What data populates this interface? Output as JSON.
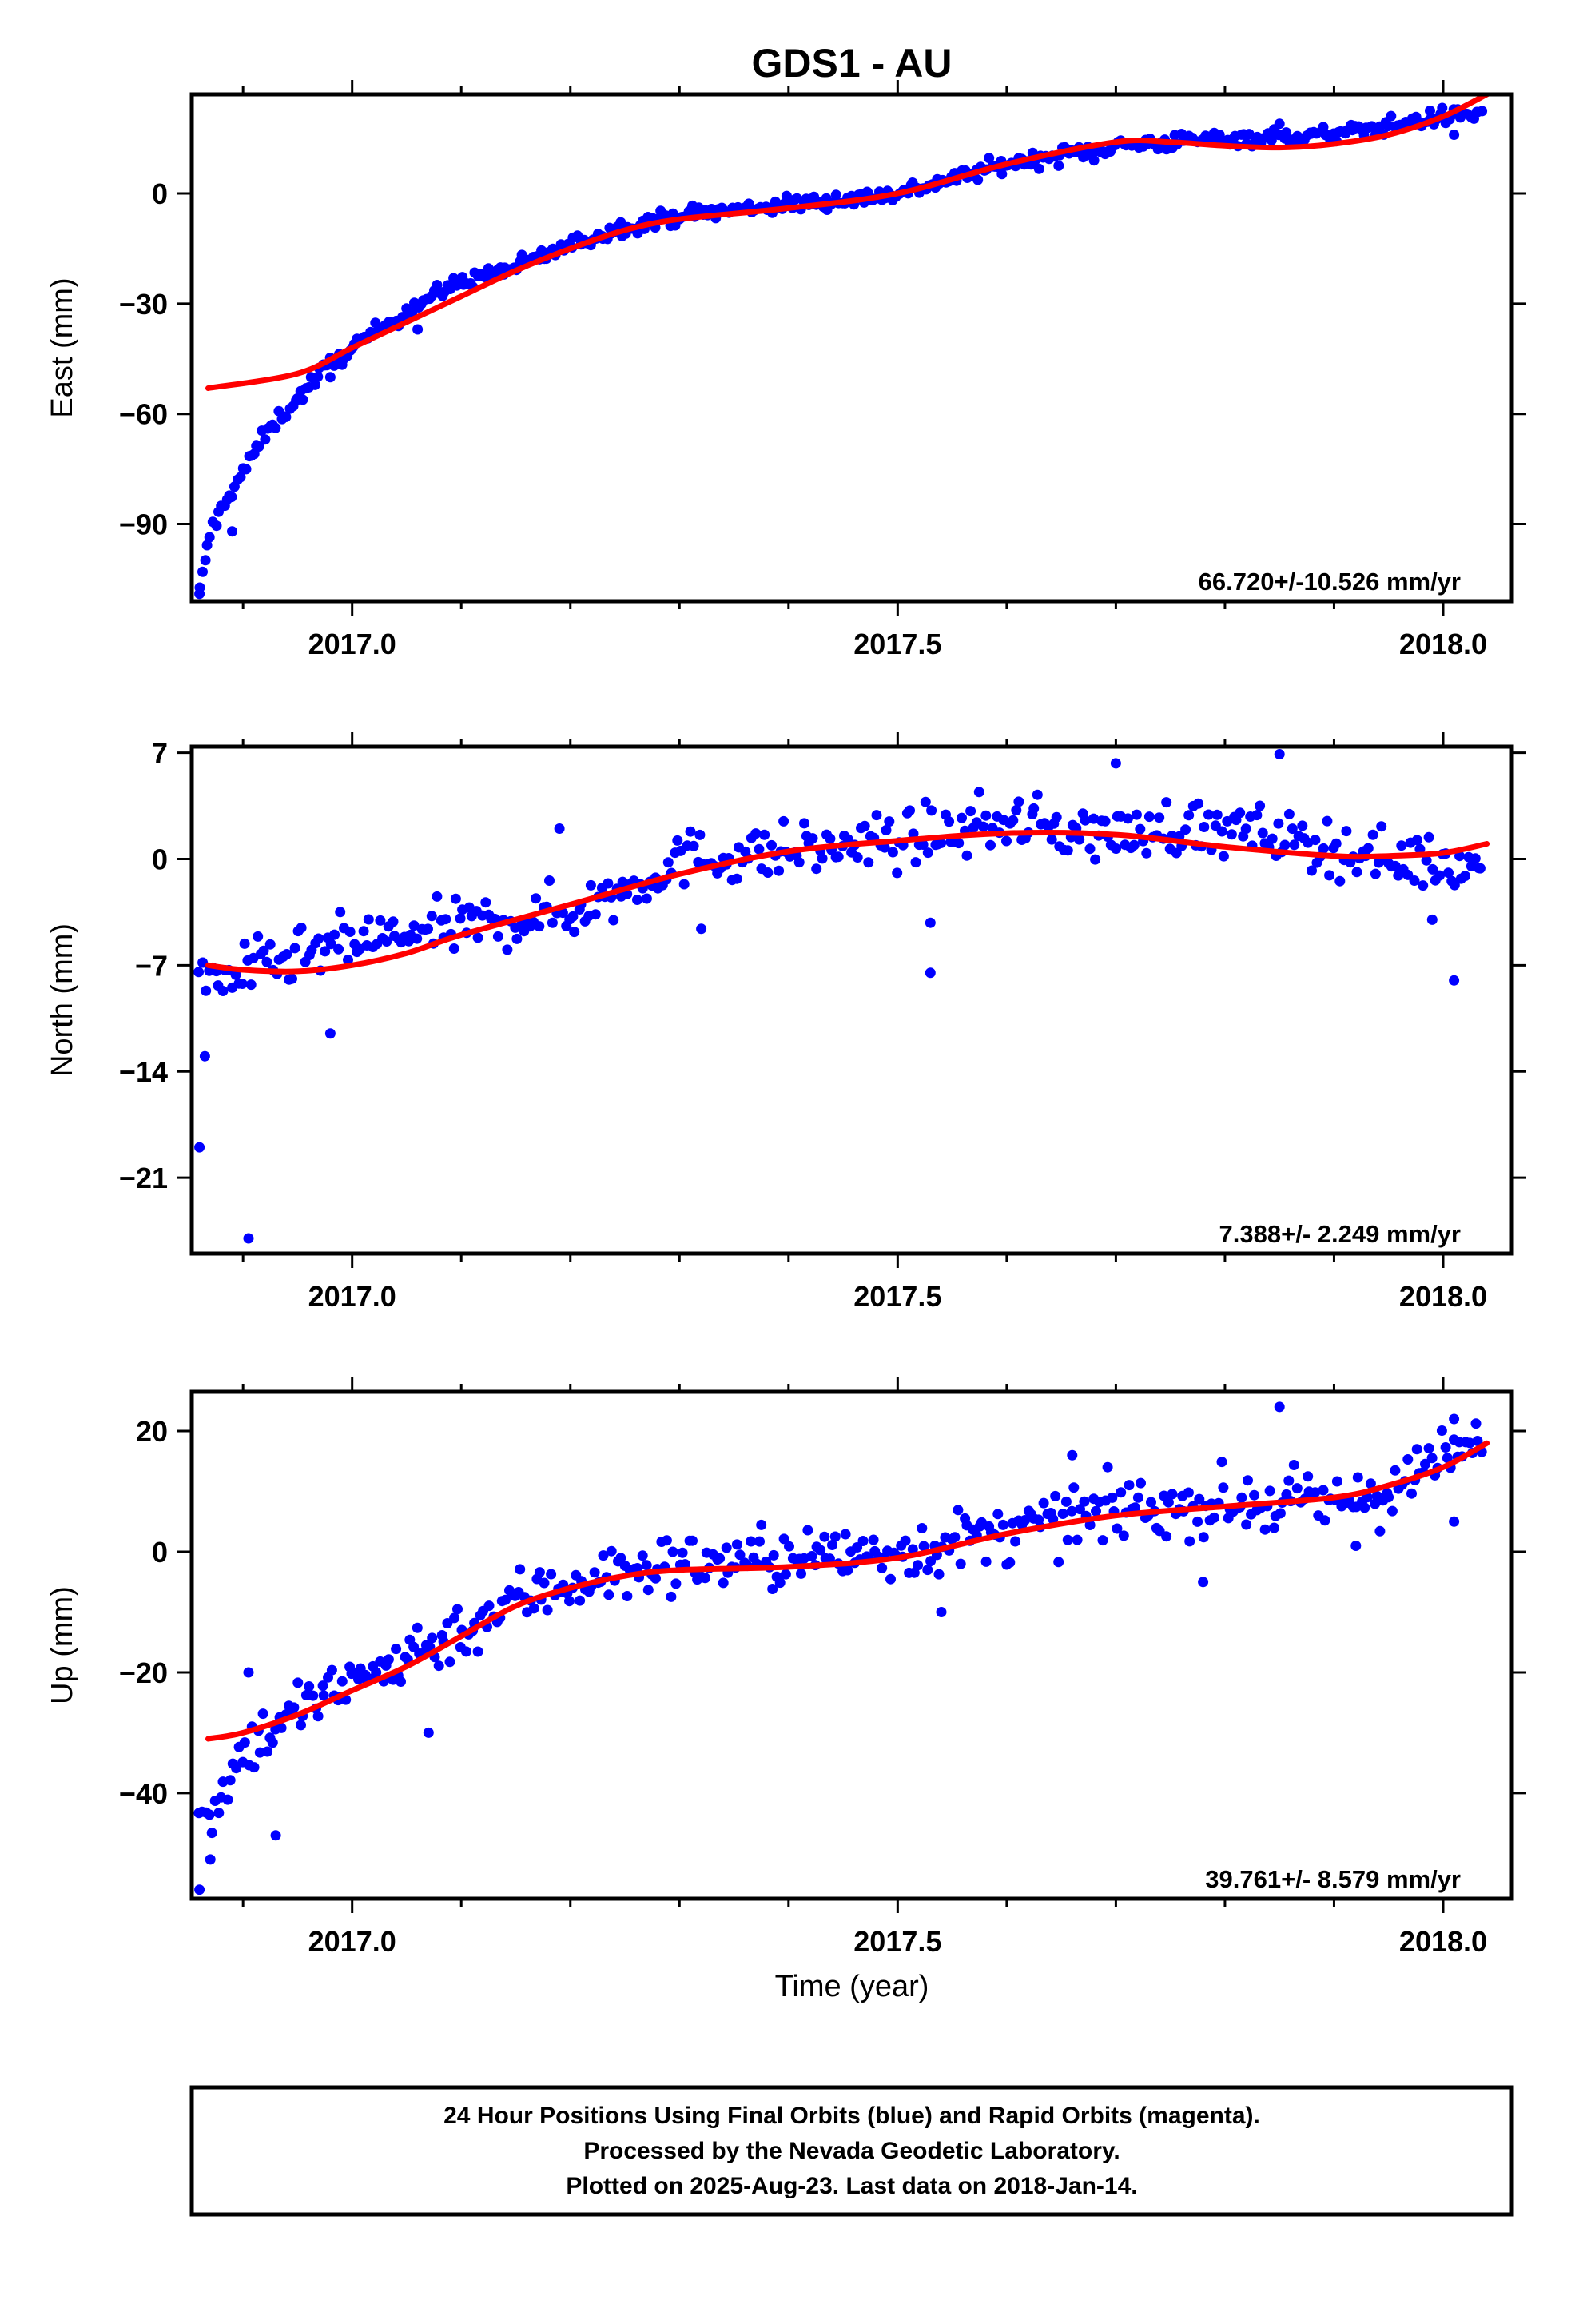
{
  "title": "GDS1 - AU",
  "xlabel": "Time (year)",
  "footer": {
    "lines": [
      "24 Hour Positions Using Final Orbits (blue) and Rapid Orbits (magenta).",
      "Processed by the Nevada Geodetic Laboratory.",
      "Plotted on 2025-Aug-23. Last data on 2018-Jan-14."
    ]
  },
  "colors": {
    "points": "#0000ff",
    "fit": "#ff0000",
    "frame": "#000000"
  },
  "chart_data": [
    {
      "type": "scatter",
      "ylabel": "East (mm)",
      "xlim": [
        2016.853,
        2018.063
      ],
      "ylim": [
        -111,
        27
      ],
      "xticks": [
        2017.0,
        2017.5,
        2018.0
      ],
      "xtick_labels": [
        "2017.0",
        "2017.5",
        "2018.0"
      ],
      "yticks": [
        -90,
        -60,
        -30,
        0
      ],
      "ytick_labels": [
        "−90",
        "−60",
        "−30",
        "0"
      ],
      "rate_text": "66.720+/-10.526 mm/yr",
      "fit": {
        "x": [
          2016.868,
          2016.95,
          2017.0,
          2017.05,
          2017.1,
          2017.15,
          2017.2,
          2017.25,
          2017.3,
          2017.4,
          2017.5,
          2017.6,
          2017.7,
          2017.75,
          2017.8,
          2017.85,
          2017.9,
          2017.95,
          2018.0,
          2018.04
        ],
        "y": [
          -53,
          -49,
          -42,
          -35,
          -28,
          -21,
          -15,
          -10,
          -7,
          -4,
          0,
          8,
          14,
          14,
          13,
          12.5,
          13.5,
          16,
          21,
          27
        ]
      },
      "series": [
        {
          "name": "",
          "knots": [
            [
              2016.86,
              -109
            ],
            [
              2016.87,
              -92
            ],
            [
              2016.885,
              -83
            ],
            [
              2016.9,
              -76
            ],
            [
              2016.915,
              -68
            ],
            [
              2016.93,
              -62
            ],
            [
              2016.95,
              -56
            ],
            [
              2016.97,
              -49
            ],
            [
              2017.0,
              -42
            ],
            [
              2017.03,
              -36
            ],
            [
              2017.06,
              -30
            ],
            [
              2017.1,
              -24
            ],
            [
              2017.15,
              -20
            ],
            [
              2017.2,
              -14
            ],
            [
              2017.25,
              -9
            ],
            [
              2017.3,
              -6
            ],
            [
              2017.4,
              -3
            ],
            [
              2017.5,
              0
            ],
            [
              2017.6,
              8
            ],
            [
              2017.7,
              13
            ],
            [
              2017.8,
              15
            ],
            [
              2017.9,
              16
            ],
            [
              2018.0,
              21
            ],
            [
              2018.035,
              22
            ]
          ],
          "n": 470,
          "noise": 1.6,
          "outliers": [
            [
              2016.86,
              -109
            ],
            [
              2016.89,
              -92
            ],
            [
              2016.98,
              -50
            ],
            [
              2017.06,
              -37
            ],
            [
              2017.46,
              -3
            ],
            [
              2017.55,
              4
            ],
            [
              2017.68,
              9
            ],
            [
              2018.01,
              16
            ],
            [
              2017.85,
              19
            ],
            [
              2017.3,
              -7
            ]
          ]
        }
      ]
    },
    {
      "type": "scatter",
      "ylabel": "North (mm)",
      "xlim": [
        2016.853,
        2018.063
      ],
      "ylim": [
        -26,
        7.4
      ],
      "xticks": [
        2017.0,
        2017.5,
        2018.0
      ],
      "xtick_labels": [
        "2017.0",
        "2017.5",
        "2018.0"
      ],
      "yticks": [
        -21,
        -14,
        -7,
        0,
        7
      ],
      "ytick_labels": [
        "−21",
        "−14",
        "−7",
        "0",
        "7"
      ],
      "rate_text": "7.388+/- 2.249 mm/yr",
      "fit": {
        "x": [
          2016.868,
          2016.9,
          2016.95,
          2017.0,
          2017.05,
          2017.1,
          2017.2,
          2017.3,
          2017.4,
          2017.5,
          2017.6,
          2017.7,
          2017.8,
          2017.9,
          2017.95,
          2018.0,
          2018.04
        ],
        "y": [
          -7,
          -7.3,
          -7.4,
          -7,
          -6.2,
          -5,
          -3,
          -1,
          0.5,
          1.2,
          1.7,
          1.6,
          0.8,
          0.2,
          0.2,
          0.4,
          1
        ]
      },
      "series": [
        {
          "name": "",
          "knots": [
            [
              2016.86,
              -8
            ],
            [
              2016.9,
              -7.5
            ],
            [
              2017.0,
              -5.5
            ],
            [
              2017.1,
              -4.5
            ],
            [
              2017.2,
              -3.5
            ],
            [
              2017.25,
              -2
            ],
            [
              2017.3,
              0
            ],
            [
              2017.4,
              0.5
            ],
            [
              2017.5,
              1.2
            ],
            [
              2017.6,
              2.5
            ],
            [
              2017.7,
              1.5
            ],
            [
              2017.75,
              2.2
            ],
            [
              2017.85,
              1.5
            ],
            [
              2017.95,
              0
            ],
            [
              2018.035,
              -0.5
            ]
          ],
          "n": 400,
          "noise": 1.3,
          "outliers": [
            [
              2016.86,
              -19
            ],
            [
              2016.865,
              -13
            ],
            [
              2016.905,
              -25
            ],
            [
              2016.98,
              -11.5
            ],
            [
              2017.32,
              -4.6
            ],
            [
              2017.53,
              -4.2
            ],
            [
              2017.53,
              -7.5
            ],
            [
              2017.7,
              6.3
            ],
            [
              2017.85,
              6.9
            ],
            [
              2018.01,
              -8
            ],
            [
              2017.99,
              -4
            ],
            [
              2017.19,
              2
            ]
          ]
        }
      ]
    },
    {
      "type": "scatter",
      "ylabel": "Up (mm)",
      "xlim": [
        2016.853,
        2018.063
      ],
      "ylim": [
        -57.5,
        26.5
      ],
      "xticks": [
        2017.0,
        2017.5,
        2018.0
      ],
      "xtick_labels": [
        "2017.0",
        "2017.5",
        "2018.0"
      ],
      "yticks": [
        -40,
        -20,
        0,
        20
      ],
      "ytick_labels": [
        "−40",
        "−20",
        "0",
        "20"
      ],
      "rate_text": "39.761+/- 8.579 mm/yr",
      "fit": {
        "x": [
          2016.868,
          2016.9,
          2016.95,
          2017.0,
          2017.05,
          2017.1,
          2017.15,
          2017.2,
          2017.25,
          2017.3,
          2017.4,
          2017.5,
          2017.6,
          2017.7,
          2017.8,
          2017.9,
          2017.95,
          2018.0,
          2018.04
        ],
        "y": [
          -31,
          -30,
          -27,
          -23,
          -19,
          -14,
          -9,
          -6,
          -4,
          -3,
          -2.5,
          -1,
          3,
          6,
          7.5,
          9,
          11,
          14,
          18
        ]
      },
      "series": [
        {
          "name": "",
          "knots": [
            [
              2016.86,
              -45
            ],
            [
              2016.9,
              -33
            ],
            [
              2016.95,
              -26
            ],
            [
              2017.0,
              -22
            ],
            [
              2017.05,
              -17
            ],
            [
              2017.1,
              -13
            ],
            [
              2017.15,
              -8
            ],
            [
              2017.2,
              -5
            ],
            [
              2017.3,
              -2
            ],
            [
              2017.4,
              -1
            ],
            [
              2017.5,
              0
            ],
            [
              2017.6,
              3
            ],
            [
              2017.7,
              7
            ],
            [
              2017.8,
              8
            ],
            [
              2017.9,
              8
            ],
            [
              2017.95,
              10
            ],
            [
              2018.0,
              15
            ],
            [
              2018.035,
              18
            ]
          ],
          "n": 420,
          "noise": 3.6,
          "outliers": [
            [
              2016.86,
              -56
            ],
            [
              2016.87,
              -51
            ],
            [
              2016.905,
              -20
            ],
            [
              2016.93,
              -47
            ],
            [
              2017.07,
              -30
            ],
            [
              2017.85,
              24
            ],
            [
              2018.01,
              22
            ],
            [
              2017.54,
              -10
            ],
            [
              2017.66,
              16
            ],
            [
              2017.78,
              -5
            ],
            [
              2017.92,
              1
            ],
            [
              2018.01,
              5
            ]
          ]
        }
      ]
    }
  ]
}
